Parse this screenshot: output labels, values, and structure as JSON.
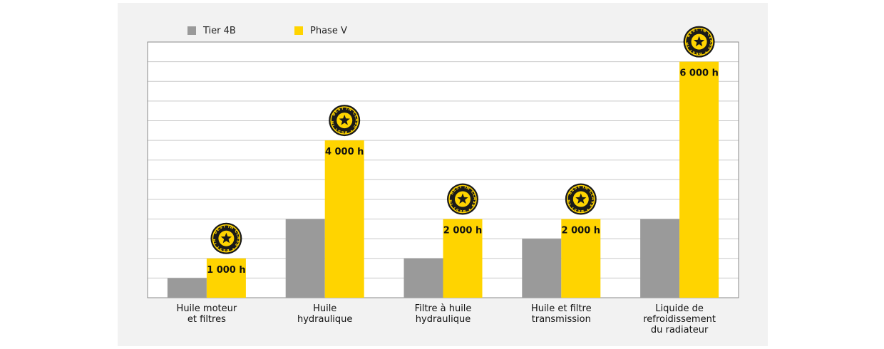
{
  "legend": [
    {
      "name": "Tier 4B",
      "color": "#9a9a9a"
    },
    {
      "name": "Phase V",
      "color": "#ffd400"
    }
  ],
  "badge_text": "BEST IN CLASS",
  "chart_data": {
    "type": "bar",
    "categories": [
      [
        "Huile moteur",
        "et filtres"
      ],
      [
        "Huile",
        "hydraulique"
      ],
      [
        "Filtre à huile",
        "hydraulique"
      ],
      [
        "Huile et filtre",
        "transmission"
      ],
      [
        "Liquide de",
        "refroidissement",
        "du radiateur"
      ]
    ],
    "series": [
      {
        "name": "Tier 4B",
        "values": [
          500,
          2000,
          1000,
          1500,
          2000
        ],
        "color": "#9a9a9a"
      },
      {
        "name": "Phase V",
        "values": [
          1000,
          4000,
          2000,
          2000,
          6000
        ],
        "color": "#ffd400",
        "labels": [
          "1 000 h",
          "4 000 h",
          "2 000 h",
          "2 000 h",
          "6 000 h"
        ]
      }
    ],
    "ylim": [
      0,
      6500
    ],
    "grid": true,
    "legend_position": "top-left",
    "badges_on_series": "Phase V"
  }
}
